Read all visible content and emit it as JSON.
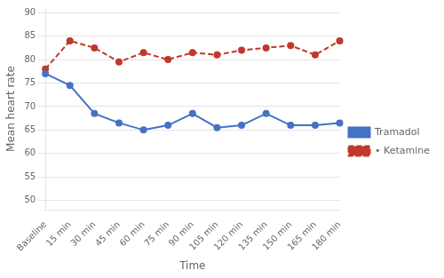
{
  "chart_data": {
    "type": "line",
    "categories": [
      "Baseline",
      "15 min",
      "30 min",
      "45 min",
      "60 min",
      "75 min",
      "90 min",
      "105 min",
      "120 min",
      "135 min",
      "150 min",
      "165 min",
      "180 min"
    ],
    "series": [
      {
        "name": "Tramadol",
        "color": "#4472C4",
        "marker": "circle",
        "line_style": "solid",
        "values": [
          77,
          74.5,
          68.5,
          66.5,
          65,
          66,
          68.5,
          65.5,
          66,
          68.5,
          66,
          66,
          66.5
        ]
      },
      {
        "name": "• Ketamine",
        "color": "#C0392B",
        "marker": "circle",
        "line_style": "dashed",
        "values": [
          78,
          84,
          82.5,
          79.5,
          81.5,
          80,
          81.5,
          81,
          82,
          82.5,
          83,
          81,
          84
        ]
      }
    ],
    "xlabel": "Time",
    "ylabel": "Mean heart rate",
    "ylim": [
      48,
      91
    ],
    "yticks": [
      50,
      55,
      60,
      65,
      70,
      75,
      80,
      85,
      90
    ],
    "grid": true,
    "legend": "right"
  }
}
